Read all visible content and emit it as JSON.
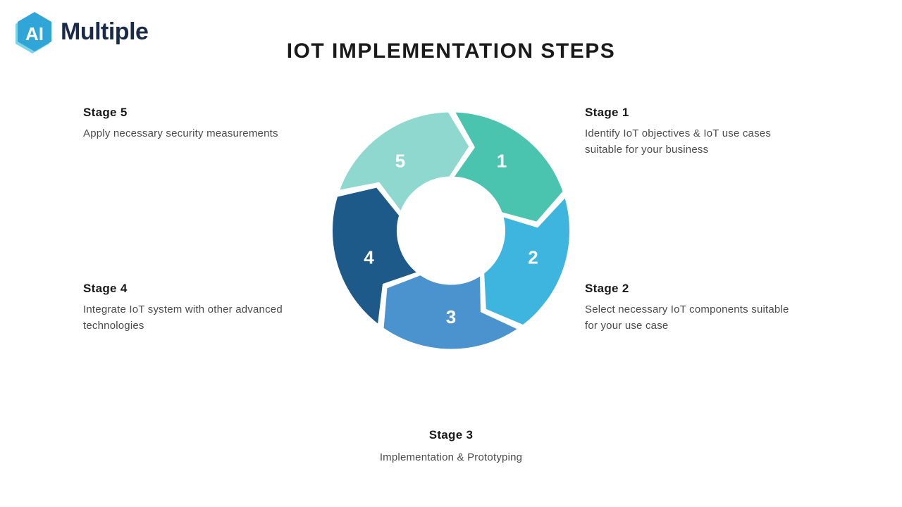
{
  "logo": {
    "badge_text": "AI",
    "brand_text": "Multiple",
    "hex_color_main": "#2fa5d8",
    "hex_color_shadow": "#7bd5e8",
    "badge_text_color": "#ffffff",
    "brand_text_color": "#1a2b4a"
  },
  "title": "IOT IMPLEMENTATION STEPS",
  "chart": {
    "type": "cycle-arrow-ring",
    "segment_count": 5,
    "outer_radius": 170,
    "inner_radius": 75,
    "gap_color": "#ffffff",
    "gap_width": 4,
    "center_fill": "#ffffff",
    "number_color": "#ffffff",
    "number_fontsize": 26,
    "segments": [
      {
        "num": "1",
        "color": "#4bc4af",
        "angle_center_deg": 36
      },
      {
        "num": "2",
        "color": "#3db5de",
        "angle_center_deg": 108
      },
      {
        "num": "3",
        "color": "#4a93ce",
        "angle_center_deg": 180
      },
      {
        "num": "4",
        "color": "#1d5a8a",
        "angle_center_deg": 252
      },
      {
        "num": "5",
        "color": "#8fd8cf",
        "angle_center_deg": 324
      }
    ]
  },
  "stages": [
    {
      "num": "1",
      "heading": "Stage 1",
      "desc": "Identify IoT objectives & IoT use cases suitable for your business"
    },
    {
      "num": "2",
      "heading": "Stage 2",
      "desc": "Select necessary IoT components suitable for your use case"
    },
    {
      "num": "3",
      "heading": "Stage 3",
      "desc": "Implementation & Prototyping"
    },
    {
      "num": "4",
      "heading": "Stage 4",
      "desc": "Integrate IoT system with other advanced technologies"
    },
    {
      "num": "5",
      "heading": "Stage 5",
      "desc": "Apply necessary security measurements"
    }
  ],
  "typography": {
    "title_fontsize": 30,
    "title_weight": 800,
    "title_color": "#1a1a1a",
    "heading_fontsize": 17,
    "heading_weight": 700,
    "heading_color": "#1a1a1a",
    "desc_fontsize": 15,
    "desc_color": "#4a4a4a"
  },
  "background_color": "#ffffff"
}
